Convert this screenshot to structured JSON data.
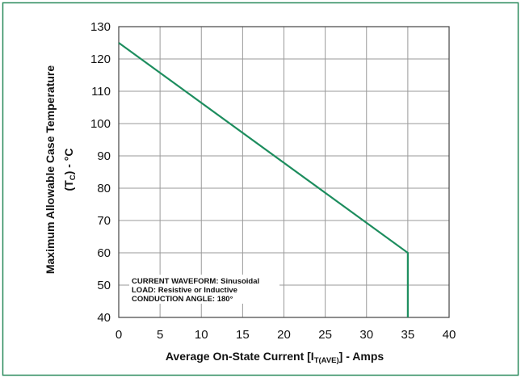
{
  "chart_data": {
    "type": "line",
    "title": "",
    "xlabel": {
      "text": "Average On-State Current [I",
      "subscript": "T(AVE)",
      "suffix": "] - Amps"
    },
    "ylabel": {
      "line1": "Maximum Allowable Case Temperature",
      "line2_text": "(T",
      "line2_subscript": "C",
      "line2_suffix": ") - °C"
    },
    "xlim": [
      0,
      40
    ],
    "ylim": [
      40,
      130
    ],
    "xticks": [
      0,
      5,
      10,
      15,
      20,
      25,
      30,
      35,
      40
    ],
    "yticks": [
      40,
      50,
      60,
      70,
      80,
      90,
      100,
      110,
      120,
      130
    ],
    "grid": true,
    "series": [
      {
        "x": [
          0,
          35,
          35
        ],
        "y": [
          125,
          60,
          40
        ]
      }
    ],
    "annotations": [
      "CURRENT WAVEFORM: Sinusoidal",
      "LOAD: Resistive or Inductive",
      "CONDUCTION ANGLE: 180°"
    ],
    "annotation_position": "bottom-left",
    "colors": {
      "line": "#1d8d5e",
      "frame": "#2a8a5c",
      "grid": "#9a9a9a",
      "plot_border": "#444444"
    }
  }
}
